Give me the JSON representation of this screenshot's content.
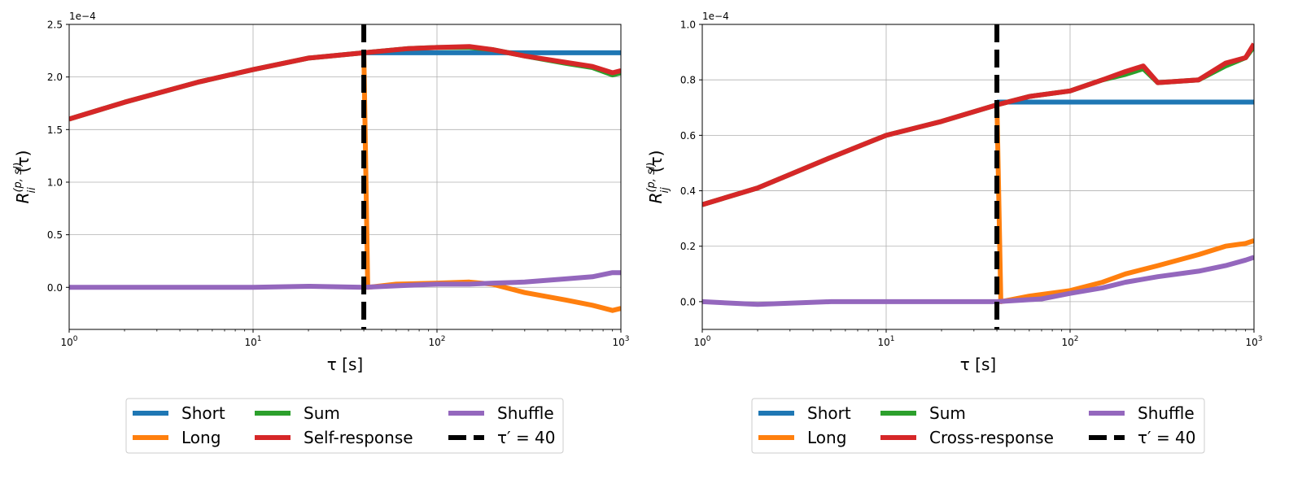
{
  "chart_data": [
    {
      "type": "line",
      "ylabel": "R_{ii}^{(p,sl)}(τ)",
      "ylabel_main": "R",
      "ylabel_sub": "ii",
      "ylabel_sup": "(p, sl)",
      "ylabel_arg": "(τ)",
      "xlabel": "τ [s]",
      "xscale": "log",
      "xlim": [
        1,
        1000
      ],
      "ylim": [
        -0.4,
        2.5
      ],
      "y_multiplier": "1e−4",
      "x_ticks": [
        1,
        10,
        100,
        1000
      ],
      "x_tick_labels": [
        {
          "base": "10",
          "exp": "0"
        },
        {
          "base": "10",
          "exp": "1"
        },
        {
          "base": "10",
          "exp": "2"
        },
        {
          "base": "10",
          "exp": "3"
        }
      ],
      "y_ticks": [
        0.0,
        0.5,
        1.0,
        1.5,
        2.0,
        2.5
      ],
      "y_tick_labels": [
        "0.0",
        "0.5",
        "1.0",
        "1.5",
        "2.0",
        "2.5"
      ],
      "grid": true,
      "vline": {
        "x": 40,
        "label": "τ′ = 40",
        "color": "#000000"
      },
      "series": [
        {
          "name": "Short",
          "color": "#1f77b4",
          "x": [
            40,
            1000
          ],
          "values": [
            2.23,
            2.23
          ]
        },
        {
          "name": "Long",
          "color": "#ff7f0e",
          "x": [
            40,
            42,
            60,
            100,
            150,
            200,
            300,
            500,
            700,
            900,
            1000
          ],
          "values": [
            2.23,
            0.0,
            0.03,
            0.04,
            0.05,
            0.03,
            -0.05,
            -0.12,
            -0.17,
            -0.22,
            -0.2
          ]
        },
        {
          "name": "Sum",
          "color": "#2ca02c",
          "x": [
            1,
            2,
            5,
            10,
            20,
            40,
            70,
            100,
            150,
            200,
            300,
            500,
            700,
            900,
            1000
          ],
          "values": [
            1.6,
            1.76,
            1.95,
            2.07,
            2.18,
            2.23,
            2.27,
            2.28,
            2.28,
            2.26,
            2.2,
            2.13,
            2.09,
            2.02,
            2.04
          ]
        },
        {
          "name": "Self-response",
          "color": "#d62728",
          "x": [
            1,
            2,
            5,
            10,
            20,
            40,
            70,
            100,
            150,
            200,
            300,
            500,
            700,
            900,
            1000
          ],
          "values": [
            1.6,
            1.76,
            1.95,
            2.07,
            2.18,
            2.23,
            2.27,
            2.28,
            2.29,
            2.26,
            2.2,
            2.14,
            2.1,
            2.04,
            2.06
          ]
        },
        {
          "name": "Shuffle",
          "color": "#9467bd",
          "x": [
            1,
            2,
            5,
            10,
            20,
            40,
            70,
            100,
            150,
            200,
            300,
            500,
            700,
            900,
            1000
          ],
          "values": [
            0.0,
            0.0,
            0.0,
            0.0,
            0.01,
            0.0,
            0.02,
            0.03,
            0.03,
            0.04,
            0.05,
            0.08,
            0.1,
            0.14,
            0.14
          ]
        }
      ],
      "legend": {
        "placement": "below",
        "entries": [
          {
            "label": "Short",
            "color": "#1f77b4",
            "dashed": false
          },
          {
            "label": "Long",
            "color": "#ff7f0e",
            "dashed": false
          },
          {
            "label": "Sum",
            "color": "#2ca02c",
            "dashed": false
          },
          {
            "label": "Self-response",
            "color": "#d62728",
            "dashed": false
          },
          {
            "label": "Shuffle",
            "color": "#9467bd",
            "dashed": false
          },
          {
            "label": "τ′ = 40",
            "color": "#000000",
            "dashed": true
          }
        ]
      }
    },
    {
      "type": "line",
      "ylabel": "R_{ij}^{(p,sl)}(τ)",
      "ylabel_main": "R",
      "ylabel_sub": "ij",
      "ylabel_sup": "(p, sl)",
      "ylabel_arg": "(τ)",
      "xlabel": "τ [s]",
      "xscale": "log",
      "xlim": [
        1,
        1000
      ],
      "ylim": [
        -0.1,
        1.0
      ],
      "y_multiplier": "1e−4",
      "x_ticks": [
        1,
        10,
        100,
        1000
      ],
      "x_tick_labels": [
        {
          "base": "10",
          "exp": "0"
        },
        {
          "base": "10",
          "exp": "1"
        },
        {
          "base": "10",
          "exp": "2"
        },
        {
          "base": "10",
          "exp": "3"
        }
      ],
      "y_ticks": [
        0.0,
        0.2,
        0.4,
        0.6,
        0.8,
        1.0
      ],
      "y_tick_labels": [
        "0.0",
        "0.2",
        "0.4",
        "0.6",
        "0.8",
        "1.0"
      ],
      "grid": true,
      "vline": {
        "x": 40,
        "label": "τ′ = 40",
        "color": "#000000"
      },
      "series": [
        {
          "name": "Short",
          "color": "#1f77b4",
          "x": [
            40,
            1000
          ],
          "values": [
            0.72,
            0.72
          ]
        },
        {
          "name": "Long",
          "color": "#ff7f0e",
          "x": [
            40,
            42,
            60,
            100,
            150,
            200,
            300,
            500,
            700,
            900,
            1000
          ],
          "values": [
            0.71,
            0.0,
            0.02,
            0.04,
            0.07,
            0.1,
            0.13,
            0.17,
            0.2,
            0.21,
            0.22
          ]
        },
        {
          "name": "Sum",
          "color": "#2ca02c",
          "x": [
            1,
            2,
            5,
            10,
            20,
            40,
            60,
            100,
            150,
            200,
            250,
            300,
            500,
            700,
            900,
            1000
          ],
          "values": [
            0.35,
            0.41,
            0.52,
            0.6,
            0.65,
            0.71,
            0.74,
            0.76,
            0.8,
            0.82,
            0.84,
            0.79,
            0.8,
            0.85,
            0.88,
            0.92
          ]
        },
        {
          "name": "Cross-response",
          "color": "#d62728",
          "x": [
            1,
            2,
            5,
            10,
            20,
            40,
            60,
            100,
            150,
            200,
            250,
            300,
            500,
            700,
            900,
            1000
          ],
          "values": [
            0.35,
            0.41,
            0.52,
            0.6,
            0.65,
            0.71,
            0.74,
            0.76,
            0.8,
            0.83,
            0.85,
            0.79,
            0.8,
            0.86,
            0.88,
            0.93
          ]
        },
        {
          "name": "Shuffle",
          "color": "#9467bd",
          "x": [
            1,
            2,
            5,
            10,
            20,
            40,
            70,
            100,
            150,
            200,
            300,
            500,
            700,
            900,
            1000
          ],
          "values": [
            0.0,
            -0.01,
            0.0,
            0.0,
            0.0,
            0.0,
            0.01,
            0.03,
            0.05,
            0.07,
            0.09,
            0.11,
            0.13,
            0.15,
            0.16
          ]
        }
      ],
      "legend": {
        "placement": "below",
        "entries": [
          {
            "label": "Short",
            "color": "#1f77b4",
            "dashed": false
          },
          {
            "label": "Long",
            "color": "#ff7f0e",
            "dashed": false
          },
          {
            "label": "Sum",
            "color": "#2ca02c",
            "dashed": false
          },
          {
            "label": "Cross-response",
            "color": "#d62728",
            "dashed": false
          },
          {
            "label": "Shuffle",
            "color": "#9467bd",
            "dashed": false
          },
          {
            "label": "τ′ = 40",
            "color": "#000000",
            "dashed": true
          }
        ]
      }
    }
  ]
}
